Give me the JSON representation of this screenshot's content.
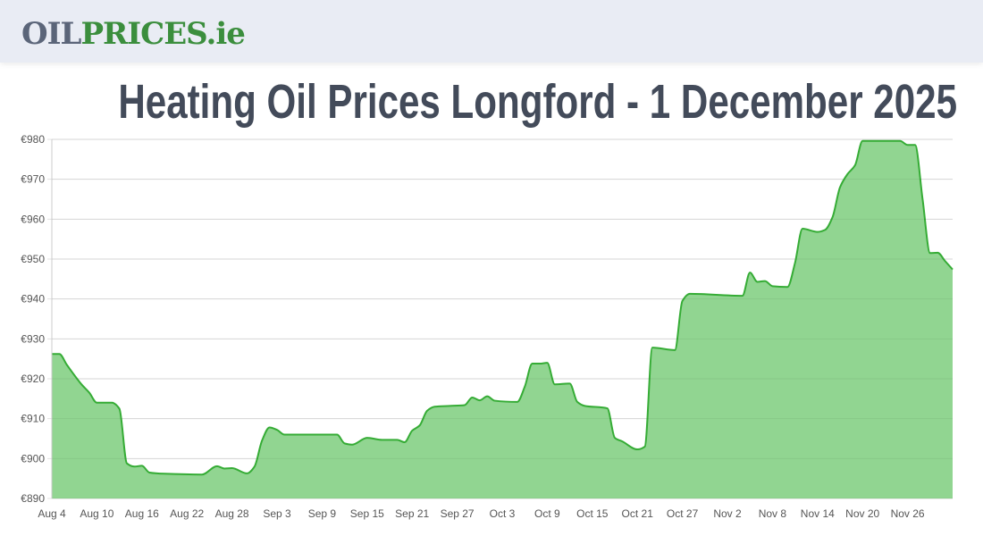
{
  "header": {
    "logo_part1": "OIL",
    "logo_part2": "PRICES.ie"
  },
  "title": "Heating Oil Prices Longford - 1 December 2025",
  "chart_data": {
    "type": "area",
    "title": "Heating Oil Prices Longford - 1 December 2025",
    "xlabel": "",
    "ylabel": "",
    "ylim": [
      890,
      980
    ],
    "xlim": [
      "2025-08-04",
      "2025-12-02"
    ],
    "grid": true,
    "y_ticks": [
      "€890",
      "€900",
      "€910",
      "€920",
      "€930",
      "€940",
      "€950",
      "€960",
      "€970",
      "€980"
    ],
    "y_tick_values": [
      890,
      900,
      910,
      920,
      930,
      940,
      950,
      960,
      970,
      980
    ],
    "x_ticks": [
      "Aug 4",
      "Aug 10",
      "Aug 16",
      "Aug 22",
      "Aug 28",
      "Sep 3",
      "Sep 9",
      "Sep 15",
      "Sep 21",
      "Sep 27",
      "Oct 3",
      "Oct 9",
      "Oct 15",
      "Oct 21",
      "Oct 27",
      "Nov 2",
      "Nov 8",
      "Nov 14",
      "Nov 20",
      "Nov 26"
    ],
    "x_tick_dates": [
      "2025-08-04",
      "2025-08-10",
      "2025-08-16",
      "2025-08-22",
      "2025-08-28",
      "2025-09-03",
      "2025-09-09",
      "2025-09-15",
      "2025-09-21",
      "2025-09-27",
      "2025-10-03",
      "2025-10-09",
      "2025-10-15",
      "2025-10-21",
      "2025-10-27",
      "2025-11-02",
      "2025-11-08",
      "2025-11-14",
      "2025-11-20",
      "2025-11-26"
    ],
    "colors": {
      "line": "#35ac35",
      "fill": "#91d591"
    },
    "points": [
      [
        "2025-08-04",
        926.2
      ],
      [
        "2025-08-05",
        926.2
      ],
      [
        "2025-08-06",
        923.5
      ],
      [
        "2025-08-08",
        918.5
      ],
      [
        "2025-08-09",
        916.5
      ],
      [
        "2025-08-10",
        914.0
      ],
      [
        "2025-08-12",
        914.0
      ],
      [
        "2025-08-13",
        912.5
      ],
      [
        "2025-08-14",
        898.8
      ],
      [
        "2025-08-15",
        898.0
      ],
      [
        "2025-08-16",
        898.2
      ],
      [
        "2025-08-17",
        896.5
      ],
      [
        "2025-08-19",
        896.2
      ],
      [
        "2025-08-24",
        896.0
      ],
      [
        "2025-08-26",
        898.1
      ],
      [
        "2025-08-27",
        897.5
      ],
      [
        "2025-08-28",
        897.6
      ],
      [
        "2025-08-30",
        896.3
      ],
      [
        "2025-08-31",
        898.0
      ],
      [
        "2025-09-01",
        904.5
      ],
      [
        "2025-09-02",
        907.8
      ],
      [
        "2025-09-03",
        907.2
      ],
      [
        "2025-09-04",
        906.0
      ],
      [
        "2025-09-11",
        906.0
      ],
      [
        "2025-09-12",
        903.8
      ],
      [
        "2025-09-13",
        903.5
      ],
      [
        "2025-09-15",
        905.2
      ],
      [
        "2025-09-17",
        904.7
      ],
      [
        "2025-09-19",
        904.7
      ],
      [
        "2025-09-20",
        904.1
      ],
      [
        "2025-09-21",
        907.0
      ],
      [
        "2025-09-22",
        908.3
      ],
      [
        "2025-09-23",
        912.0
      ],
      [
        "2025-09-24",
        913.0
      ],
      [
        "2025-09-26",
        913.2
      ],
      [
        "2025-09-28",
        913.4
      ],
      [
        "2025-09-29",
        915.3
      ],
      [
        "2025-09-30",
        914.6
      ],
      [
        "2025-10-01",
        915.6
      ],
      [
        "2025-10-02",
        914.5
      ],
      [
        "2025-10-05",
        914.2
      ],
      [
        "2025-10-06",
        918.0
      ],
      [
        "2025-10-07",
        923.8
      ],
      [
        "2025-10-08",
        923.8
      ],
      [
        "2025-10-09",
        924.0
      ],
      [
        "2025-10-10",
        918.6
      ],
      [
        "2025-10-12",
        918.8
      ],
      [
        "2025-10-13",
        914.2
      ],
      [
        "2025-10-14",
        913.2
      ],
      [
        "2025-10-17",
        912.6
      ],
      [
        "2025-10-18",
        905.2
      ],
      [
        "2025-10-19",
        904.3
      ],
      [
        "2025-10-21",
        902.3
      ],
      [
        "2025-10-22",
        903.0
      ],
      [
        "2025-10-23",
        927.8
      ],
      [
        "2025-10-26",
        927.2
      ],
      [
        "2025-10-27",
        939.5
      ],
      [
        "2025-10-28",
        941.3
      ],
      [
        "2025-11-04",
        940.8
      ],
      [
        "2025-11-05",
        946.6
      ],
      [
        "2025-11-06",
        944.3
      ],
      [
        "2025-11-07",
        944.5
      ],
      [
        "2025-11-08",
        943.2
      ],
      [
        "2025-11-10",
        943.0
      ],
      [
        "2025-11-11",
        949.0
      ],
      [
        "2025-11-12",
        957.6
      ],
      [
        "2025-11-14",
        956.8
      ],
      [
        "2025-11-15",
        957.3
      ],
      [
        "2025-11-16",
        960.5
      ],
      [
        "2025-11-17",
        968.0
      ],
      [
        "2025-11-18",
        971.3
      ],
      [
        "2025-11-19",
        973.5
      ],
      [
        "2025-11-20",
        979.6
      ],
      [
        "2025-11-25",
        979.6
      ],
      [
        "2025-11-26",
        978.6
      ],
      [
        "2025-11-27",
        978.6
      ],
      [
        "2025-11-28",
        965.0
      ],
      [
        "2025-11-29",
        951.5
      ],
      [
        "2025-11-30",
        951.6
      ],
      [
        "2025-12-01",
        949.5
      ]
    ]
  }
}
